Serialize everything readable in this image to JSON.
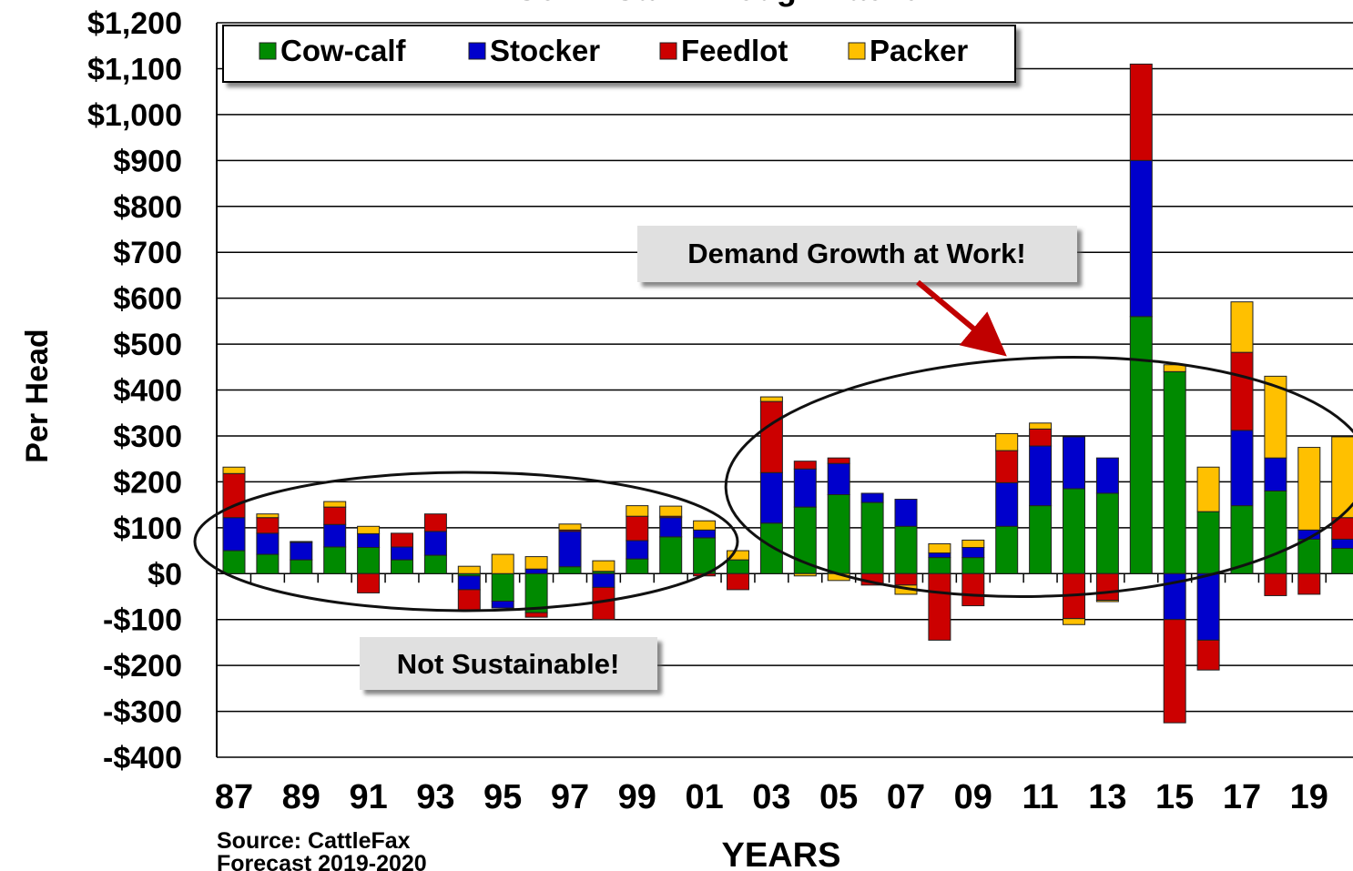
{
  "chart_data": {
    "type": "bar",
    "stacked": true,
    "title": "Cow - Calf Through Packer",
    "y_label": "Per Head",
    "x_label": "YEARS",
    "source": "Source: CattleFax",
    "note": "Forecast 2019-2020",
    "annotations": [
      "Demand Growth at Work!",
      "Not Sustainable!"
    ],
    "categories": [
      "87",
      null,
      "89",
      null,
      "91",
      null,
      "93",
      null,
      "95",
      null,
      "97",
      null,
      "99",
      null,
      "01",
      null,
      "03",
      null,
      "05",
      null,
      "07",
      null,
      "09",
      null,
      "11",
      null,
      "13",
      null,
      "15",
      null,
      "17",
      null,
      "19",
      null
    ],
    "series": [
      {
        "name": "Cow-calf",
        "color": "#008a00",
        "values": [
          50,
          42,
          30,
          58,
          57,
          30,
          40,
          -5,
          -60,
          -85,
          15,
          5,
          32,
          80,
          78,
          30,
          110,
          145,
          172,
          155,
          103,
          35,
          35,
          103,
          148,
          185,
          175,
          560,
          440,
          135,
          148,
          180,
          75,
          55
        ]
      },
      {
        "name": "Stocker",
        "color": "#0000cc",
        "values": [
          72,
          46,
          38,
          49,
          30,
          28,
          52,
          -30,
          -15,
          10,
          77,
          -30,
          40,
          42,
          17,
          0,
          110,
          83,
          68,
          20,
          59,
          10,
          22,
          95,
          130,
          113,
          77,
          340,
          -100,
          -145,
          164,
          72,
          20,
          20
        ]
      },
      {
        "name": "Feedlot",
        "color": "#cc0000",
        "values": [
          96,
          34,
          2,
          38,
          -42,
          30,
          38,
          -45,
          0,
          -10,
          3,
          -70,
          53,
          3,
          -5,
          -35,
          155,
          17,
          12,
          -25,
          -25,
          -145,
          -70,
          70,
          37,
          -98,
          -58,
          210,
          -225,
          -65,
          170,
          -48,
          -45,
          47
        ]
      },
      {
        "name": "Packer",
        "color": "#ffc000",
        "values": [
          14,
          8,
          0,
          12,
          16,
          0,
          0,
          16,
          42,
          27,
          13,
          23,
          23,
          22,
          20,
          20,
          10,
          -5,
          -15,
          0,
          -20,
          20,
          16,
          37,
          13,
          -13,
          -3,
          0,
          15,
          97,
          110,
          178,
          180,
          176
        ]
      }
    ],
    "ylim": [
      -400,
      1200
    ],
    "yticks": [
      {
        "value": -400,
        "label": "-$400"
      },
      {
        "value": -300,
        "label": "-$300"
      },
      {
        "value": -200,
        "label": "-$200"
      },
      {
        "value": -100,
        "label": "-$100"
      },
      {
        "value": 0,
        "label": "$0"
      },
      {
        "value": 100,
        "label": "$100"
      },
      {
        "value": 200,
        "label": "$200"
      },
      {
        "value": 300,
        "label": "$300"
      },
      {
        "value": 400,
        "label": "$400"
      },
      {
        "value": 500,
        "label": "$500"
      },
      {
        "value": 600,
        "label": "$600"
      },
      {
        "value": 700,
        "label": "$700"
      },
      {
        "value": 800,
        "label": "$800"
      },
      {
        "value": 900,
        "label": "$900"
      },
      {
        "value": 1000,
        "label": "$1,000"
      },
      {
        "value": 1100,
        "label": "$1,100"
      },
      {
        "value": 1200,
        "label": "$1,200"
      }
    ],
    "grid": true,
    "legend": "top"
  }
}
